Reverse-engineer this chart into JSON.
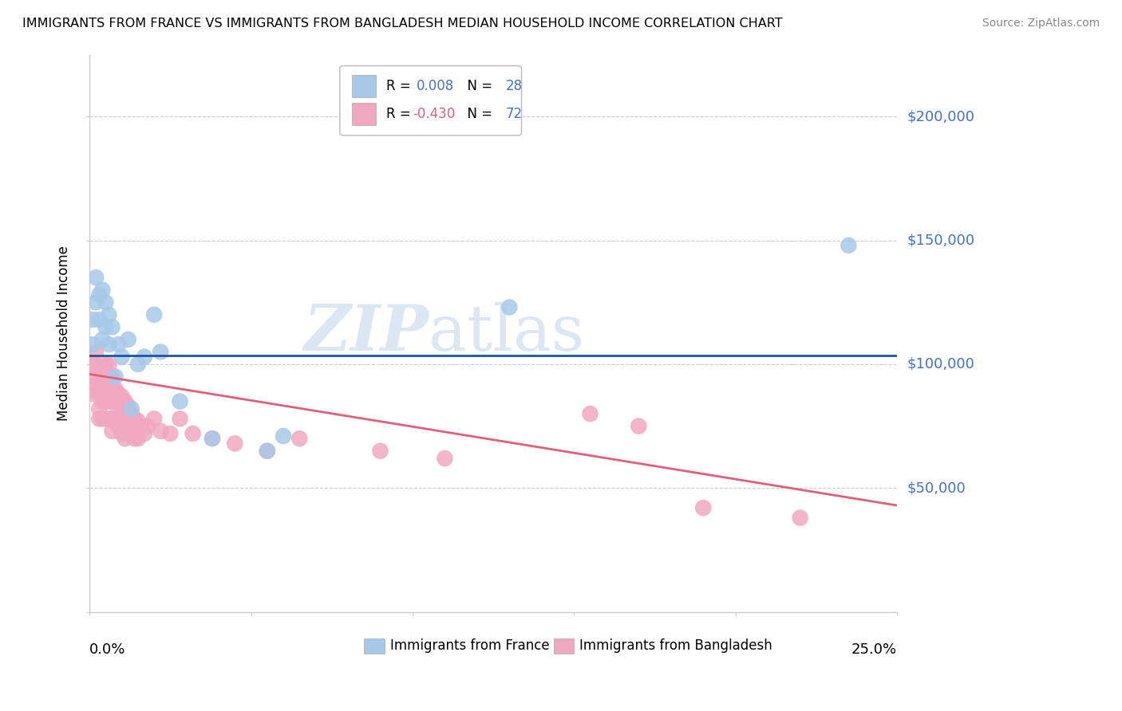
{
  "title": "IMMIGRANTS FROM FRANCE VS IMMIGRANTS FROM BANGLADESH MEDIAN HOUSEHOLD INCOME CORRELATION CHART",
  "source": "Source: ZipAtlas.com",
  "ylabel": "Median Household Income",
  "xlim": [
    0.0,
    0.25
  ],
  "ylim": [
    0,
    225000
  ],
  "france_color": "#a8c8e8",
  "france_color_line": "#1a56a0",
  "bangladesh_color": "#f0a8c0",
  "bangladesh_color_line": "#e0607a",
  "france_R": "0.008",
  "france_N": "28",
  "bangladesh_R": "-0.430",
  "bangladesh_N": "72",
  "france_x": [
    0.001,
    0.001,
    0.002,
    0.002,
    0.003,
    0.003,
    0.004,
    0.004,
    0.005,
    0.005,
    0.006,
    0.006,
    0.007,
    0.008,
    0.009,
    0.01,
    0.012,
    0.013,
    0.015,
    0.017,
    0.02,
    0.022,
    0.028,
    0.038,
    0.055,
    0.06,
    0.13,
    0.235
  ],
  "france_y": [
    108000,
    118000,
    125000,
    135000,
    128000,
    118000,
    110000,
    130000,
    125000,
    115000,
    120000,
    108000,
    115000,
    95000,
    108000,
    103000,
    110000,
    82000,
    100000,
    103000,
    120000,
    105000,
    85000,
    70000,
    65000,
    71000,
    123000,
    148000
  ],
  "bangladesh_x": [
    0.001,
    0.001,
    0.001,
    0.002,
    0.002,
    0.002,
    0.002,
    0.003,
    0.003,
    0.003,
    0.003,
    0.003,
    0.004,
    0.004,
    0.004,
    0.004,
    0.005,
    0.005,
    0.005,
    0.005,
    0.005,
    0.006,
    0.006,
    0.006,
    0.006,
    0.006,
    0.007,
    0.007,
    0.007,
    0.007,
    0.007,
    0.008,
    0.008,
    0.008,
    0.009,
    0.009,
    0.009,
    0.01,
    0.01,
    0.01,
    0.01,
    0.011,
    0.011,
    0.011,
    0.011,
    0.012,
    0.012,
    0.012,
    0.013,
    0.013,
    0.014,
    0.014,
    0.015,
    0.015,
    0.016,
    0.017,
    0.018,
    0.02,
    0.022,
    0.025,
    0.028,
    0.032,
    0.038,
    0.045,
    0.055,
    0.065,
    0.09,
    0.11,
    0.155,
    0.17,
    0.19,
    0.22
  ],
  "bangladesh_y": [
    100000,
    95000,
    88000,
    100000,
    98000,
    92000,
    105000,
    97000,
    93000,
    88000,
    82000,
    78000,
    95000,
    90000,
    85000,
    78000,
    100000,
    95000,
    90000,
    85000,
    78000,
    100000,
    95000,
    90000,
    85000,
    78000,
    95000,
    90000,
    85000,
    78000,
    73000,
    90000,
    85000,
    78000,
    88000,
    82000,
    75000,
    87000,
    83000,
    78000,
    72000,
    85000,
    80000,
    75000,
    70000,
    83000,
    78000,
    72000,
    80000,
    73000,
    78000,
    70000,
    77000,
    70000,
    75000,
    72000,
    75000,
    78000,
    73000,
    72000,
    78000,
    72000,
    70000,
    68000,
    65000,
    70000,
    65000,
    62000,
    80000,
    75000,
    42000,
    38000
  ],
  "legend_france_label": "Immigrants from France",
  "legend_bangladesh_label": "Immigrants from Bangladesh",
  "background_color": "#ffffff",
  "grid_color": "#cccccc",
  "watermark_zip": "ZIP",
  "watermark_atlas": "atlas",
  "france_line_y_at_0": 103500,
  "france_line_slope": 0,
  "bangladesh_line_y_at_0": 96000,
  "bangladesh_line_y_at_25": 43000
}
